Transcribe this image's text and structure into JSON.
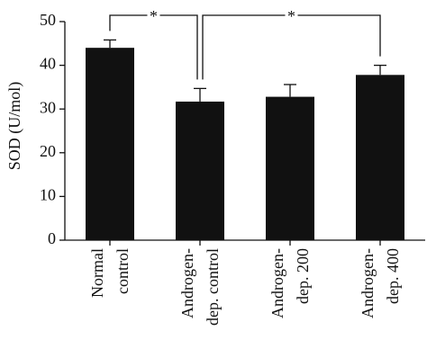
{
  "chart_data": {
    "type": "bar",
    "y_label": "SOD (U/mol)",
    "categories": [
      [
        "Normal",
        "control"
      ],
      [
        "Androgen-",
        "dep. control"
      ],
      [
        "Androgen-",
        "dep. 200"
      ],
      [
        "Androgen-",
        "dep. 400"
      ]
    ],
    "values": [
      44,
      31.7,
      32.8,
      37.8
    ],
    "errors": [
      1.8,
      3,
      2.8,
      2.2
    ],
    "color": "#111111",
    "ylim": [
      0,
      50
    ],
    "yticks": [
      0,
      10,
      20,
      30,
      40,
      50
    ],
    "annotations": [
      {
        "text": "*",
        "from": 0,
        "to": 1
      },
      {
        "text": "*",
        "from": 1,
        "to": 3
      }
    ]
  }
}
